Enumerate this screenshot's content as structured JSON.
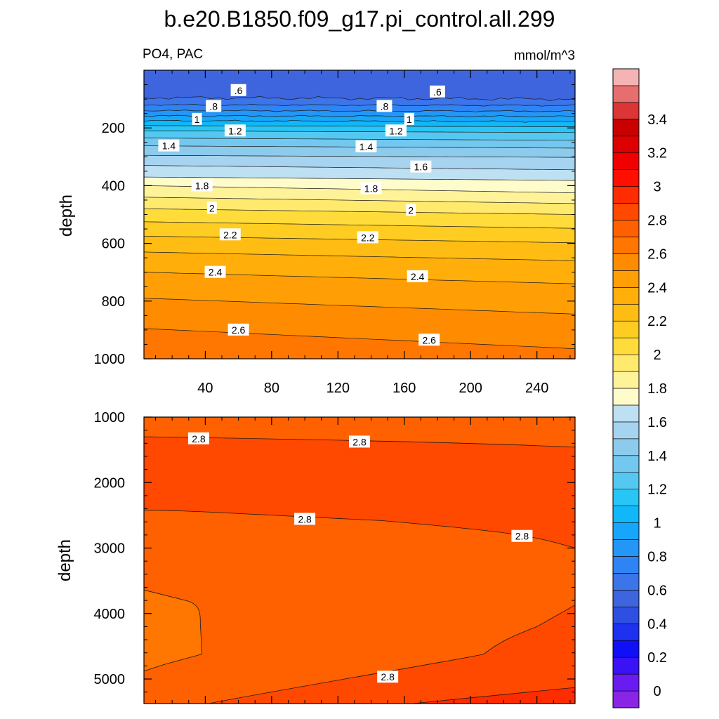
{
  "chart_data": {
    "type": "contour",
    "title": "b.e20.B1850.f09_g17.pi_control.all.299",
    "left_label": "PO4, PAC",
    "right_label": "mmol/m^3",
    "ylabel": "depth",
    "upper_panel": {
      "xlim": [
        3,
        263
      ],
      "ylim": [
        1000,
        0
      ],
      "xticks": [
        40,
        80,
        120,
        160,
        200,
        240
      ],
      "yticks": [
        200,
        400,
        600,
        800,
        1000
      ],
      "isolines": [
        {
          "value": 0.6,
          "left_depth": 95,
          "right_depth": 100
        },
        {
          "value": 0.7,
          "left_depth": 120,
          "right_depth": 122
        },
        {
          "value": 0.8,
          "left_depth": 140,
          "right_depth": 142
        },
        {
          "value": 0.9,
          "left_depth": 158,
          "right_depth": 160
        },
        {
          "value": 1.0,
          "left_depth": 175,
          "right_depth": 178
        },
        {
          "value": 1.1,
          "left_depth": 192,
          "right_depth": 196
        },
        {
          "value": 1.2,
          "left_depth": 210,
          "right_depth": 216
        },
        {
          "value": 1.3,
          "left_depth": 235,
          "right_depth": 243
        },
        {
          "value": 1.4,
          "left_depth": 262,
          "right_depth": 270
        },
        {
          "value": 1.5,
          "left_depth": 295,
          "right_depth": 302
        },
        {
          "value": 1.6,
          "left_depth": 330,
          "right_depth": 345
        },
        {
          "value": 1.7,
          "left_depth": 370,
          "right_depth": 382
        },
        {
          "value": 1.8,
          "left_depth": 400,
          "right_depth": 425
        },
        {
          "value": 1.9,
          "left_depth": 440,
          "right_depth": 462
        },
        {
          "value": 2.0,
          "left_depth": 480,
          "right_depth": 500
        },
        {
          "value": 2.1,
          "left_depth": 525,
          "right_depth": 548
        },
        {
          "value": 2.2,
          "left_depth": 575,
          "right_depth": 598
        },
        {
          "value": 2.3,
          "left_depth": 630,
          "right_depth": 660
        },
        {
          "value": 2.4,
          "left_depth": 700,
          "right_depth": 740
        },
        {
          "value": 2.5,
          "left_depth": 790,
          "right_depth": 845
        },
        {
          "value": 2.6,
          "left_depth": 895,
          "right_depth": 965
        }
      ],
      "labels": [
        {
          "text": ".6",
          "x": 60,
          "depth": 70
        },
        {
          "text": ".6",
          "x": 180,
          "depth": 75
        },
        {
          "text": ".8",
          "x": 45,
          "depth": 125
        },
        {
          "text": ".8",
          "x": 148,
          "depth": 125
        },
        {
          "text": "1",
          "x": 35,
          "depth": 170
        },
        {
          "text": "1",
          "x": 163,
          "depth": 170
        },
        {
          "text": "1.2",
          "x": 58,
          "depth": 210
        },
        {
          "text": "1.2",
          "x": 155,
          "depth": 210
        },
        {
          "text": "1.4",
          "x": 18,
          "depth": 262
        },
        {
          "text": "1.4",
          "x": 137,
          "depth": 265
        },
        {
          "text": "1.6",
          "x": 170,
          "depth": 335
        },
        {
          "text": "1.8",
          "x": 38,
          "depth": 400
        },
        {
          "text": "1.8",
          "x": 140,
          "depth": 410
        },
        {
          "text": "2",
          "x": 44,
          "depth": 478
        },
        {
          "text": "2",
          "x": 164,
          "depth": 485
        },
        {
          "text": "2.2",
          "x": 55,
          "depth": 570
        },
        {
          "text": "2.2",
          "x": 138,
          "depth": 580
        },
        {
          "text": "2.4",
          "x": 46,
          "depth": 700
        },
        {
          "text": "2.4",
          "x": 168,
          "depth": 715
        },
        {
          "text": "2.6",
          "x": 60,
          "depth": 900
        },
        {
          "text": "2.6",
          "x": 175,
          "depth": 935
        }
      ]
    },
    "lower_panel": {
      "xlim": [
        3,
        263
      ],
      "ylim": [
        5375,
        1000
      ],
      "yticks": [
        1000,
        2000,
        3000,
        4000,
        5000
      ],
      "regions": [
        {
          "name": "upper band 2.7-2.8",
          "level": 2.7
        },
        {
          "name": "band 2.8-2.9 (upper)",
          "level": 2.8
        },
        {
          "name": "deep band 2.7-2.8",
          "level": 2.7
        },
        {
          "name": "west patch 2.6-2.7",
          "level": 2.6
        },
        {
          "name": "bottom band 2.8-2.9",
          "level": 2.8
        },
        {
          "name": "bottom-right 2.9-3.0",
          "level": 2.9
        }
      ],
      "labels": [
        {
          "text": "2.8",
          "x": 36,
          "depth": 1330
        },
        {
          "text": "2.8",
          "x": 133,
          "depth": 1380
        },
        {
          "text": "2.8",
          "x": 100,
          "depth": 2560
        },
        {
          "text": "2.8",
          "x": 231,
          "depth": 2820
        },
        {
          "text": "2.8",
          "x": 150,
          "depth": 4970
        }
      ]
    },
    "colorbar": {
      "levels": [
        -0.1,
        0,
        0.1,
        0.2,
        0.3,
        0.4,
        0.5,
        0.6,
        0.7,
        0.8,
        0.9,
        1.0,
        1.1,
        1.2,
        1.3,
        1.4,
        1.5,
        1.6,
        1.7,
        1.8,
        1.9,
        2.0,
        2.1,
        2.2,
        2.3,
        2.4,
        2.5,
        2.6,
        2.7,
        2.8,
        2.9,
        3.0,
        3.1,
        3.2,
        3.3,
        3.4,
        3.5,
        3.6
      ],
      "colors": [
        "#8a25e6",
        "#6a1bf2",
        "#3a12f5",
        "#1010f8",
        "#1e30f0",
        "#2f4fe2",
        "#3e65de",
        "#3c74ea",
        "#2f84f4",
        "#2396f8",
        "#16a6fb",
        "#10b8fa",
        "#28c6f7",
        "#55c8f2",
        "#72c8ef",
        "#8ccbec",
        "#a6d3ef",
        "#bde0f2",
        "#fffccc",
        "#fff39a",
        "#ffea6e",
        "#ffdc3a",
        "#ffcc22",
        "#ffbd14",
        "#ffae0a",
        "#ff9f05",
        "#ff8c00",
        "#ff7600",
        "#ff6000",
        "#ff4800",
        "#ff2c00",
        "#ff0f00",
        "#f10000",
        "#dd0000",
        "#c80000",
        "#dc3535",
        "#e76e6e",
        "#f5b4b4"
      ],
      "tick_labels": [
        "0",
        "0.2",
        "0.4",
        "0.6",
        "0.8",
        "1",
        "1.2",
        "1.4",
        "1.6",
        "1.8",
        "2",
        "2.2",
        "2.4",
        "2.6",
        "2.8",
        "3",
        "3.2",
        "3.4"
      ]
    }
  }
}
